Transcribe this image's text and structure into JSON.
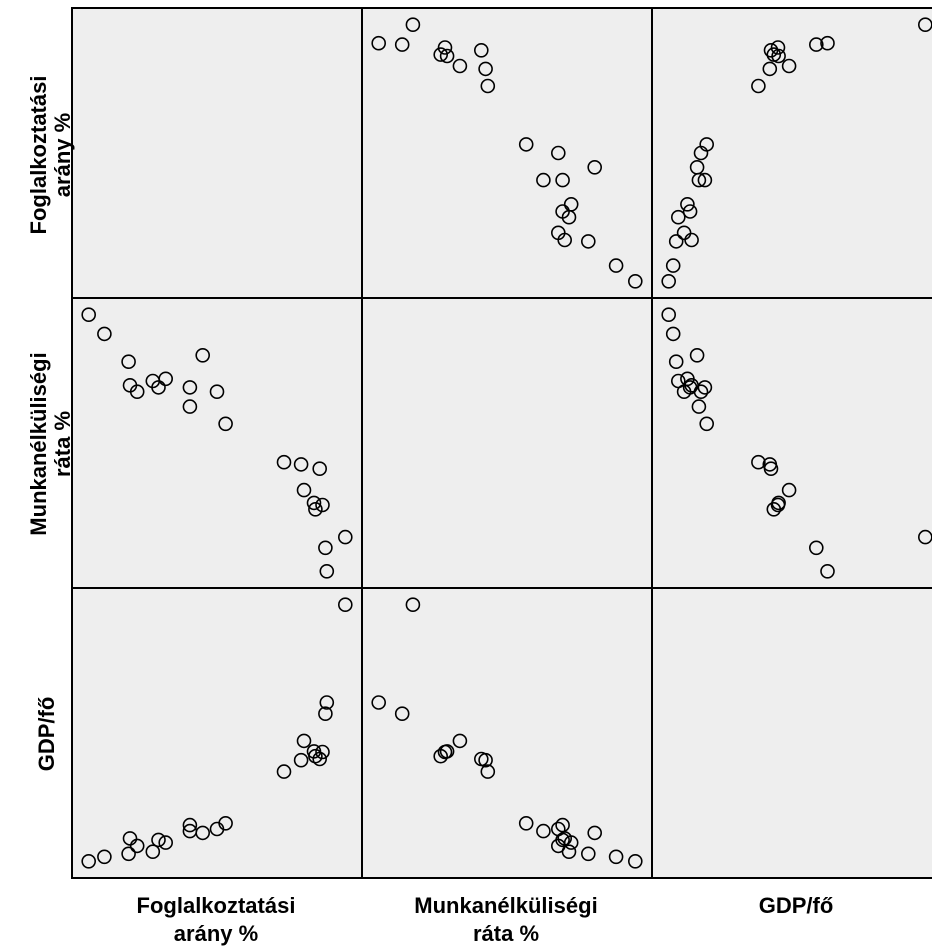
{
  "chart_data": {
    "type": "scatter",
    "layout": "scatterplot-matrix",
    "variables": [
      "Foglalkoztatási arány %",
      "Munkanélküliségi ráta %",
      "GDP/fő"
    ],
    "variable_label_lines": [
      [
        "Foglalkoztatási",
        "arány %"
      ],
      [
        "Munkanélküliségi",
        "ráta %"
      ],
      [
        "GDP/fő"
      ]
    ],
    "axis_ticks_shown": false,
    "diagonal": "empty",
    "grid": false,
    "marker": "open-circle",
    "colors": {
      "panel_background": "#eeeeee",
      "marker_stroke": "#000000",
      "axis": "#000000"
    },
    "observations": {
      "foglalkoztatasi_arany_pct": [
        55.4,
        56.5,
        58.3,
        58.8,
        58.2,
        59.9,
        60.8,
        60.3,
        62.5,
        62.5,
        63.4,
        64.4,
        65.0,
        69.1,
        70.5,
        71.2,
        71.3,
        71.8,
        72.0,
        72.1,
        70.3,
        71.6,
        73.4
      ],
      "munkanelkulisegi_rata_pct": [
        15.2,
        14.3,
        11.9,
        11.6,
        13.0,
        12.1,
        12.2,
        11.8,
        11.8,
        10.9,
        13.3,
        11.6,
        10.1,
        8.3,
        7.0,
        6.4,
        6.1,
        6.3,
        4.3,
        3.2,
        8.2,
        8.0,
        4.8
      ],
      "gdp_fo": [
        5.0,
        6.5,
        12.6,
        10.1,
        7.5,
        8.2,
        11.2,
        12.1,
        17.0,
        15.0,
        14.4,
        15.7,
        17.6,
        34.7,
        44.9,
        41.4,
        39.8,
        41.2,
        53.9,
        57.6,
        38.5,
        38.9,
        90.0
      ]
    }
  }
}
